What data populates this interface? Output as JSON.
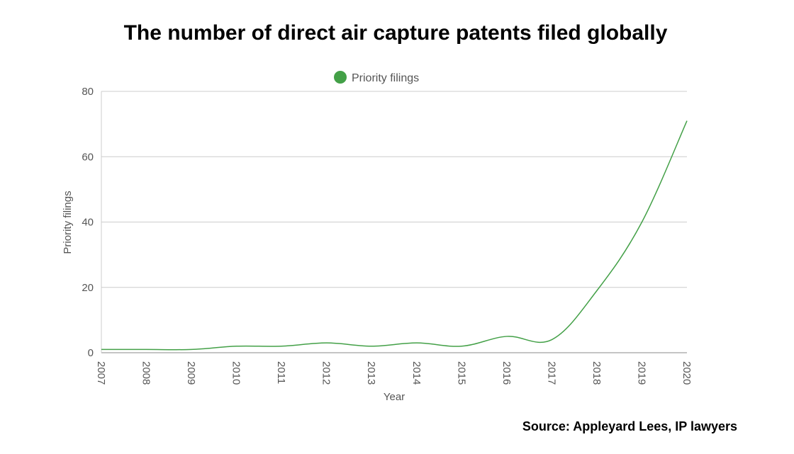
{
  "title": "The number of direct air capture patents filed globally",
  "source": "Source: Appleyard Lees, IP lawyers",
  "chart_data": {
    "type": "line",
    "title": "The number of direct air capture patents filed globally",
    "xlabel": "Year",
    "ylabel": "Priority filings",
    "x": [
      "2007",
      "2008",
      "2009",
      "2010",
      "2011",
      "2012",
      "2013",
      "2014",
      "2015",
      "2016",
      "2017",
      "2018",
      "2019",
      "2020"
    ],
    "series": [
      {
        "name": "Priority filings",
        "color": "#43a047",
        "values": [
          1,
          1,
          1,
          2,
          2,
          3,
          2,
          3,
          2,
          5,
          4,
          19,
          40,
          71
        ]
      }
    ],
    "yticks": [
      0,
      20,
      40,
      60,
      80
    ],
    "ylim": [
      0,
      80
    ],
    "grid": true,
    "legend": "top-center"
  }
}
